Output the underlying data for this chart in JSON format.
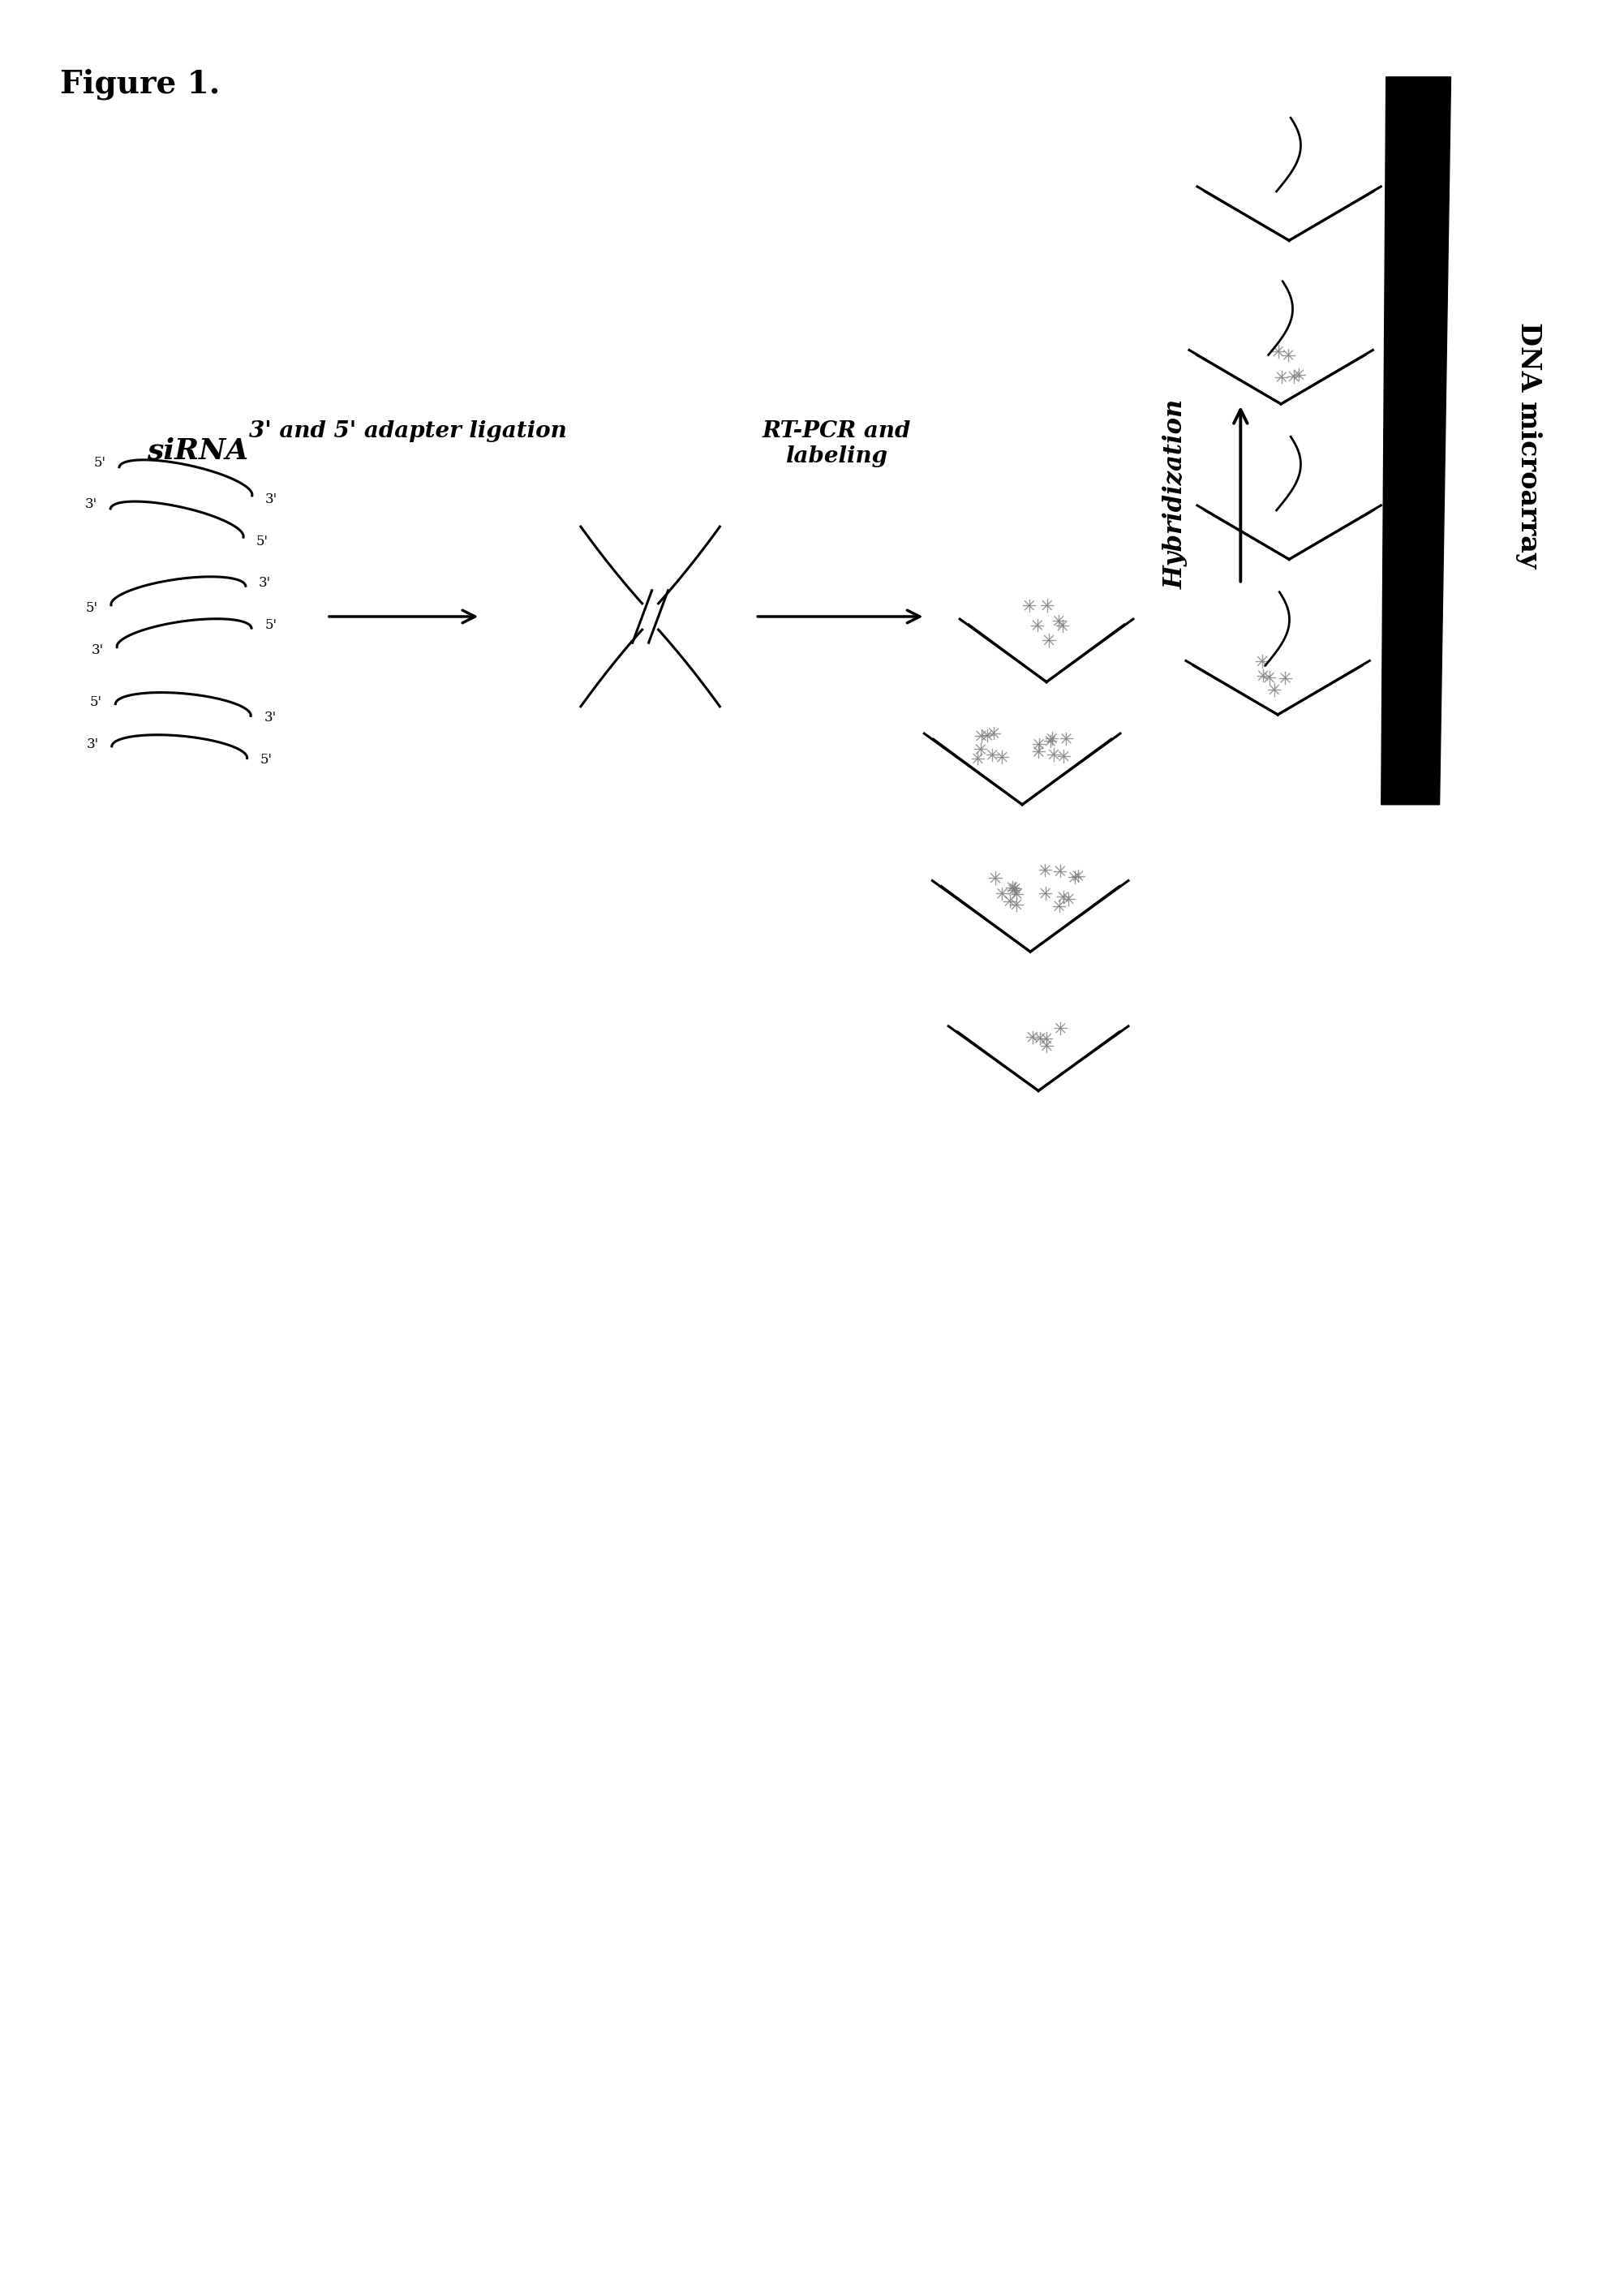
{
  "title": "Figure 1.",
  "background_color": "#ffffff",
  "text_color": "#000000",
  "label_sirna": "siRNA",
  "label_adapter": "3' and 5' adapter ligation",
  "label_rtpcr": "RT-PCR and\nlabeling",
  "label_hybrid": "Hybridization",
  "label_dna": "DNA microarray",
  "fig_width": 20.02,
  "fig_height": 28.3
}
